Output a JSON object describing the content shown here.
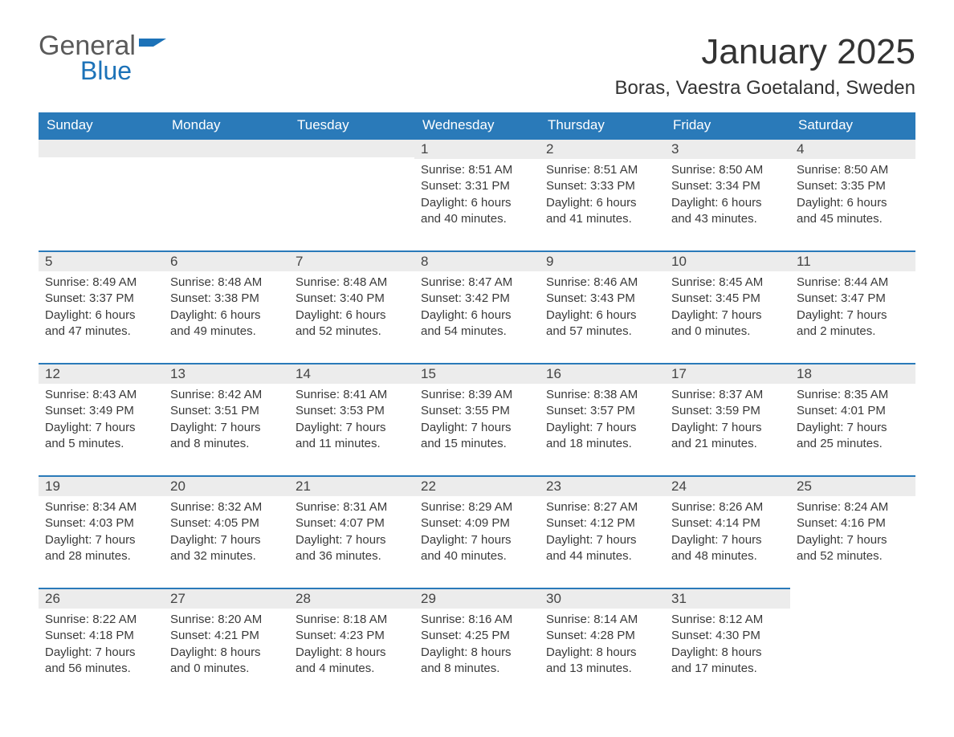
{
  "logo": {
    "word1": "General",
    "word2": "Blue",
    "general_color": "#5a5a5a",
    "blue_color": "#1c72b8",
    "shape_color": "#1c72b8"
  },
  "title": "January 2025",
  "location": "Boras, Vaestra Goetaland, Sweden",
  "colors": {
    "header_bg": "#2a7ab9",
    "header_text": "#ffffff",
    "daynum_bg": "#ececec",
    "border_top": "#2a7ab9",
    "body_text": "#3a3a3a",
    "page_bg": "#ffffff"
  },
  "fonts": {
    "title_size_pt": 33,
    "location_size_pt": 18,
    "header_size_pt": 13,
    "daynum_size_pt": 13,
    "cell_size_pt": 11,
    "family": "Arial"
  },
  "day_headers": [
    "Sunday",
    "Monday",
    "Tuesday",
    "Wednesday",
    "Thursday",
    "Friday",
    "Saturday"
  ],
  "weeks": [
    [
      null,
      null,
      null,
      {
        "num": "1",
        "sunrise": "Sunrise: 8:51 AM",
        "sunset": "Sunset: 3:31 PM",
        "daylight1": "Daylight: 6 hours",
        "daylight2": "and 40 minutes."
      },
      {
        "num": "2",
        "sunrise": "Sunrise: 8:51 AM",
        "sunset": "Sunset: 3:33 PM",
        "daylight1": "Daylight: 6 hours",
        "daylight2": "and 41 minutes."
      },
      {
        "num": "3",
        "sunrise": "Sunrise: 8:50 AM",
        "sunset": "Sunset: 3:34 PM",
        "daylight1": "Daylight: 6 hours",
        "daylight2": "and 43 minutes."
      },
      {
        "num": "4",
        "sunrise": "Sunrise: 8:50 AM",
        "sunset": "Sunset: 3:35 PM",
        "daylight1": "Daylight: 6 hours",
        "daylight2": "and 45 minutes."
      }
    ],
    [
      {
        "num": "5",
        "sunrise": "Sunrise: 8:49 AM",
        "sunset": "Sunset: 3:37 PM",
        "daylight1": "Daylight: 6 hours",
        "daylight2": "and 47 minutes."
      },
      {
        "num": "6",
        "sunrise": "Sunrise: 8:48 AM",
        "sunset": "Sunset: 3:38 PM",
        "daylight1": "Daylight: 6 hours",
        "daylight2": "and 49 minutes."
      },
      {
        "num": "7",
        "sunrise": "Sunrise: 8:48 AM",
        "sunset": "Sunset: 3:40 PM",
        "daylight1": "Daylight: 6 hours",
        "daylight2": "and 52 minutes."
      },
      {
        "num": "8",
        "sunrise": "Sunrise: 8:47 AM",
        "sunset": "Sunset: 3:42 PM",
        "daylight1": "Daylight: 6 hours",
        "daylight2": "and 54 minutes."
      },
      {
        "num": "9",
        "sunrise": "Sunrise: 8:46 AM",
        "sunset": "Sunset: 3:43 PM",
        "daylight1": "Daylight: 6 hours",
        "daylight2": "and 57 minutes."
      },
      {
        "num": "10",
        "sunrise": "Sunrise: 8:45 AM",
        "sunset": "Sunset: 3:45 PM",
        "daylight1": "Daylight: 7 hours",
        "daylight2": "and 0 minutes."
      },
      {
        "num": "11",
        "sunrise": "Sunrise: 8:44 AM",
        "sunset": "Sunset: 3:47 PM",
        "daylight1": "Daylight: 7 hours",
        "daylight2": "and 2 minutes."
      }
    ],
    [
      {
        "num": "12",
        "sunrise": "Sunrise: 8:43 AM",
        "sunset": "Sunset: 3:49 PM",
        "daylight1": "Daylight: 7 hours",
        "daylight2": "and 5 minutes."
      },
      {
        "num": "13",
        "sunrise": "Sunrise: 8:42 AM",
        "sunset": "Sunset: 3:51 PM",
        "daylight1": "Daylight: 7 hours",
        "daylight2": "and 8 minutes."
      },
      {
        "num": "14",
        "sunrise": "Sunrise: 8:41 AM",
        "sunset": "Sunset: 3:53 PM",
        "daylight1": "Daylight: 7 hours",
        "daylight2": "and 11 minutes."
      },
      {
        "num": "15",
        "sunrise": "Sunrise: 8:39 AM",
        "sunset": "Sunset: 3:55 PM",
        "daylight1": "Daylight: 7 hours",
        "daylight2": "and 15 minutes."
      },
      {
        "num": "16",
        "sunrise": "Sunrise: 8:38 AM",
        "sunset": "Sunset: 3:57 PM",
        "daylight1": "Daylight: 7 hours",
        "daylight2": "and 18 minutes."
      },
      {
        "num": "17",
        "sunrise": "Sunrise: 8:37 AM",
        "sunset": "Sunset: 3:59 PM",
        "daylight1": "Daylight: 7 hours",
        "daylight2": "and 21 minutes."
      },
      {
        "num": "18",
        "sunrise": "Sunrise: 8:35 AM",
        "sunset": "Sunset: 4:01 PM",
        "daylight1": "Daylight: 7 hours",
        "daylight2": "and 25 minutes."
      }
    ],
    [
      {
        "num": "19",
        "sunrise": "Sunrise: 8:34 AM",
        "sunset": "Sunset: 4:03 PM",
        "daylight1": "Daylight: 7 hours",
        "daylight2": "and 28 minutes."
      },
      {
        "num": "20",
        "sunrise": "Sunrise: 8:32 AM",
        "sunset": "Sunset: 4:05 PM",
        "daylight1": "Daylight: 7 hours",
        "daylight2": "and 32 minutes."
      },
      {
        "num": "21",
        "sunrise": "Sunrise: 8:31 AM",
        "sunset": "Sunset: 4:07 PM",
        "daylight1": "Daylight: 7 hours",
        "daylight2": "and 36 minutes."
      },
      {
        "num": "22",
        "sunrise": "Sunrise: 8:29 AM",
        "sunset": "Sunset: 4:09 PM",
        "daylight1": "Daylight: 7 hours",
        "daylight2": "and 40 minutes."
      },
      {
        "num": "23",
        "sunrise": "Sunrise: 8:27 AM",
        "sunset": "Sunset: 4:12 PM",
        "daylight1": "Daylight: 7 hours",
        "daylight2": "and 44 minutes."
      },
      {
        "num": "24",
        "sunrise": "Sunrise: 8:26 AM",
        "sunset": "Sunset: 4:14 PM",
        "daylight1": "Daylight: 7 hours",
        "daylight2": "and 48 minutes."
      },
      {
        "num": "25",
        "sunrise": "Sunrise: 8:24 AM",
        "sunset": "Sunset: 4:16 PM",
        "daylight1": "Daylight: 7 hours",
        "daylight2": "and 52 minutes."
      }
    ],
    [
      {
        "num": "26",
        "sunrise": "Sunrise: 8:22 AM",
        "sunset": "Sunset: 4:18 PM",
        "daylight1": "Daylight: 7 hours",
        "daylight2": "and 56 minutes."
      },
      {
        "num": "27",
        "sunrise": "Sunrise: 8:20 AM",
        "sunset": "Sunset: 4:21 PM",
        "daylight1": "Daylight: 8 hours",
        "daylight2": "and 0 minutes."
      },
      {
        "num": "28",
        "sunrise": "Sunrise: 8:18 AM",
        "sunset": "Sunset: 4:23 PM",
        "daylight1": "Daylight: 8 hours",
        "daylight2": "and 4 minutes."
      },
      {
        "num": "29",
        "sunrise": "Sunrise: 8:16 AM",
        "sunset": "Sunset: 4:25 PM",
        "daylight1": "Daylight: 8 hours",
        "daylight2": "and 8 minutes."
      },
      {
        "num": "30",
        "sunrise": "Sunrise: 8:14 AM",
        "sunset": "Sunset: 4:28 PM",
        "daylight1": "Daylight: 8 hours",
        "daylight2": "and 13 minutes."
      },
      {
        "num": "31",
        "sunrise": "Sunrise: 8:12 AM",
        "sunset": "Sunset: 4:30 PM",
        "daylight1": "Daylight: 8 hours",
        "daylight2": "and 17 minutes."
      },
      null
    ]
  ]
}
